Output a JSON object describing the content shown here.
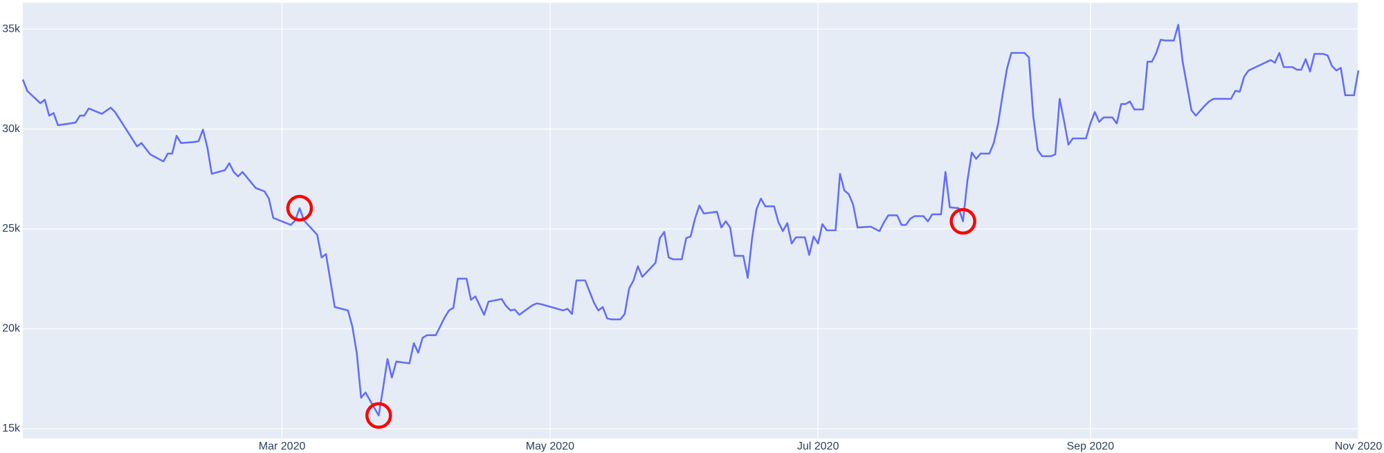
{
  "chart_data": {
    "type": "line",
    "x": [
      "2020-01-02",
      "2020-01-03",
      "2020-01-06",
      "2020-01-07",
      "2020-01-08",
      "2020-01-09",
      "2020-01-10",
      "2020-01-14",
      "2020-01-15",
      "2020-01-16",
      "2020-01-17",
      "2020-01-20",
      "2020-01-22",
      "2020-01-23",
      "2020-01-28",
      "2020-01-29",
      "2020-01-31",
      "2020-02-03",
      "2020-02-04",
      "2020-02-05",
      "2020-02-06",
      "2020-02-07",
      "2020-02-10",
      "2020-02-11",
      "2020-02-12",
      "2020-02-13",
      "2020-02-14",
      "2020-02-17",
      "2020-02-18",
      "2020-02-19",
      "2020-02-20",
      "2020-02-21",
      "2020-02-24",
      "2020-02-26",
      "2020-02-27",
      "2020-02-28",
      "2020-03-03",
      "2020-03-04",
      "2020-03-05",
      "2020-03-06",
      "2020-03-09",
      "2020-03-10",
      "2020-03-11",
      "2020-03-13",
      "2020-03-16",
      "2020-03-17",
      "2020-03-18",
      "2020-03-19",
      "2020-03-20",
      "2020-03-23",
      "2020-03-24",
      "2020-03-25",
      "2020-03-26",
      "2020-03-27",
      "2020-03-30",
      "2020-03-31",
      "2020-04-01",
      "2020-04-02",
      "2020-04-03",
      "2020-04-05",
      "2020-04-07",
      "2020-04-08",
      "2020-04-09",
      "2020-04-10",
      "2020-04-12",
      "2020-04-13",
      "2020-04-14",
      "2020-04-16",
      "2020-04-17",
      "2020-04-20",
      "2020-04-21",
      "2020-04-22",
      "2020-04-23",
      "2020-04-24",
      "2020-04-27",
      "2020-04-28",
      "2020-04-29",
      "2020-05-04",
      "2020-05-05",
      "2020-05-06",
      "2020-05-07",
      "2020-05-09",
      "2020-05-11",
      "2020-05-12",
      "2020-05-13",
      "2020-05-14",
      "2020-05-15",
      "2020-05-17",
      "2020-05-18",
      "2020-05-19",
      "2020-05-20",
      "2020-05-21",
      "2020-05-22",
      "2020-05-25",
      "2020-05-26",
      "2020-05-27",
      "2020-05-28",
      "2020-05-29",
      "2020-05-31",
      "2020-06-01",
      "2020-06-02",
      "2020-06-03",
      "2020-06-04",
      "2020-06-05",
      "2020-06-08",
      "2020-06-09",
      "2020-06-10",
      "2020-06-11",
      "2020-06-12",
      "2020-06-14",
      "2020-06-15",
      "2020-06-16",
      "2020-06-17",
      "2020-06-18",
      "2020-06-19",
      "2020-06-21",
      "2020-06-22",
      "2020-06-23",
      "2020-06-24",
      "2020-06-25",
      "2020-06-26",
      "2020-06-28",
      "2020-06-29",
      "2020-06-30",
      "2020-07-01",
      "2020-07-02",
      "2020-07-03",
      "2020-07-05",
      "2020-07-06",
      "2020-07-07",
      "2020-07-08",
      "2020-07-09",
      "2020-07-10",
      "2020-07-13",
      "2020-07-15",
      "2020-07-16",
      "2020-07-17",
      "2020-07-19",
      "2020-07-20",
      "2020-07-21",
      "2020-07-22",
      "2020-07-23",
      "2020-07-25",
      "2020-07-26",
      "2020-07-27",
      "2020-07-29",
      "2020-07-30",
      "2020-07-31",
      "2020-08-02",
      "2020-08-03",
      "2020-08-04",
      "2020-08-05",
      "2020-08-06",
      "2020-08-07",
      "2020-08-09",
      "2020-08-10",
      "2020-08-11",
      "2020-08-12",
      "2020-08-13",
      "2020-08-14",
      "2020-08-17",
      "2020-08-18",
      "2020-08-19",
      "2020-08-20",
      "2020-08-21",
      "2020-08-23",
      "2020-08-24",
      "2020-08-25",
      "2020-08-26",
      "2020-08-27",
      "2020-08-28",
      "2020-08-31",
      "2020-09-01",
      "2020-09-02",
      "2020-09-03",
      "2020-09-04",
      "2020-09-06",
      "2020-09-07",
      "2020-09-08",
      "2020-09-09",
      "2020-09-10",
      "2020-09-11",
      "2020-09-13",
      "2020-09-14",
      "2020-09-15",
      "2020-09-16",
      "2020-09-17",
      "2020-09-18",
      "2020-09-20",
      "2020-09-21",
      "2020-09-22",
      "2020-09-24",
      "2020-09-25",
      "2020-09-27",
      "2020-09-28",
      "2020-09-29",
      "2020-10-03",
      "2020-10-04",
      "2020-10-05",
      "2020-10-06",
      "2020-10-07",
      "2020-10-12",
      "2020-10-13",
      "2020-10-14",
      "2020-10-15",
      "2020-10-17",
      "2020-10-18",
      "2020-10-19",
      "2020-10-20",
      "2020-10-21",
      "2020-10-22",
      "2020-10-24",
      "2020-10-25",
      "2020-10-26",
      "2020-10-27",
      "2020-10-28",
      "2020-10-29",
      "2020-10-31",
      "2020-11-01"
    ],
    "series": [
      {
        "color": "#636efa",
        "values": [
          32480,
          31910,
          31290,
          31470,
          30670,
          30800,
          30190,
          30320,
          30670,
          30670,
          31030,
          30760,
          31070,
          30850,
          29130,
          29300,
          28730,
          28380,
          28770,
          28770,
          29660,
          29300,
          29350,
          29390,
          29970,
          29080,
          27760,
          27940,
          28290,
          27850,
          27630,
          27850,
          27050,
          26880,
          26520,
          25550,
          25200,
          25420,
          26040,
          25420,
          24710,
          23570,
          23740,
          21090,
          20920,
          20120,
          18800,
          16550,
          16810,
          15660,
          17030,
          18490,
          17560,
          18360,
          18270,
          19280,
          18800,
          19550,
          19680,
          19680,
          20560,
          20920,
          21050,
          22510,
          22510,
          21450,
          21620,
          20700,
          21360,
          21490,
          21140,
          20920,
          20960,
          20700,
          21180,
          21270,
          21230,
          20920,
          21000,
          20740,
          22420,
          22420,
          21310,
          20920,
          21090,
          20520,
          20470,
          20470,
          20740,
          22020,
          22420,
          23130,
          22600,
          23300,
          24540,
          24850,
          23570,
          23480,
          23480,
          24540,
          24620,
          25510,
          26170,
          25770,
          25860,
          25070,
          25380,
          25070,
          23650,
          23650,
          22550,
          24540,
          25990,
          26520,
          26130,
          26130,
          25330,
          24890,
          25290,
          24270,
          24580,
          24580,
          23700,
          24620,
          24270,
          25240,
          24930,
          24930,
          27760,
          26920,
          26740,
          26210,
          25070,
          25110,
          24890,
          25330,
          25680,
          25680,
          25200,
          25200,
          25510,
          25640,
          25640,
          25380,
          25730,
          25730,
          27850,
          26080,
          26040,
          25380,
          27410,
          28820,
          28510,
          28770,
          28770,
          29300,
          30280,
          31690,
          33010,
          33810,
          33810,
          33590,
          30630,
          28950,
          28640,
          28640,
          28730,
          31510,
          30410,
          29220,
          29530,
          29530,
          30280,
          30850,
          30360,
          30580,
          30580,
          30280,
          31250,
          31250,
          31380,
          30980,
          30980,
          33370,
          33370,
          33810,
          34470,
          34430,
          34430,
          35220,
          33370,
          30940,
          30670,
          31160,
          31380,
          31510,
          31510,
          31910,
          31870,
          32620,
          32930,
          33450,
          33320,
          33810,
          33100,
          33100,
          32970,
          32970,
          33500,
          32880,
          33760,
          33760,
          33680,
          33150,
          32930,
          33060,
          31690,
          31690,
          32930
        ]
      }
    ],
    "highlight_x": [
      "2020-03-05",
      "2020-03-23",
      "2020-08-03"
    ],
    "highlight_color": "#ff0000",
    "xlim": [
      "2020-01-02",
      "2020-11-01"
    ],
    "xticks": [
      {
        "value": "2020-03-01",
        "label": "Mar 2020"
      },
      {
        "value": "2020-05-01",
        "label": "May 2020"
      },
      {
        "value": "2020-07-01",
        "label": "Jul 2020"
      },
      {
        "value": "2020-09-01",
        "label": "Sep 2020"
      },
      {
        "value": "2020-11-01",
        "label": "Nov 2020"
      }
    ],
    "ylim": [
      14510,
      36320
    ],
    "yticks": [
      {
        "value": 15000,
        "label": "15k"
      },
      {
        "value": 20000,
        "label": "20k"
      },
      {
        "value": 25000,
        "label": "25k"
      },
      {
        "value": 30000,
        "label": "30k"
      },
      {
        "value": 35000,
        "label": "35k"
      }
    ],
    "grid": true
  }
}
